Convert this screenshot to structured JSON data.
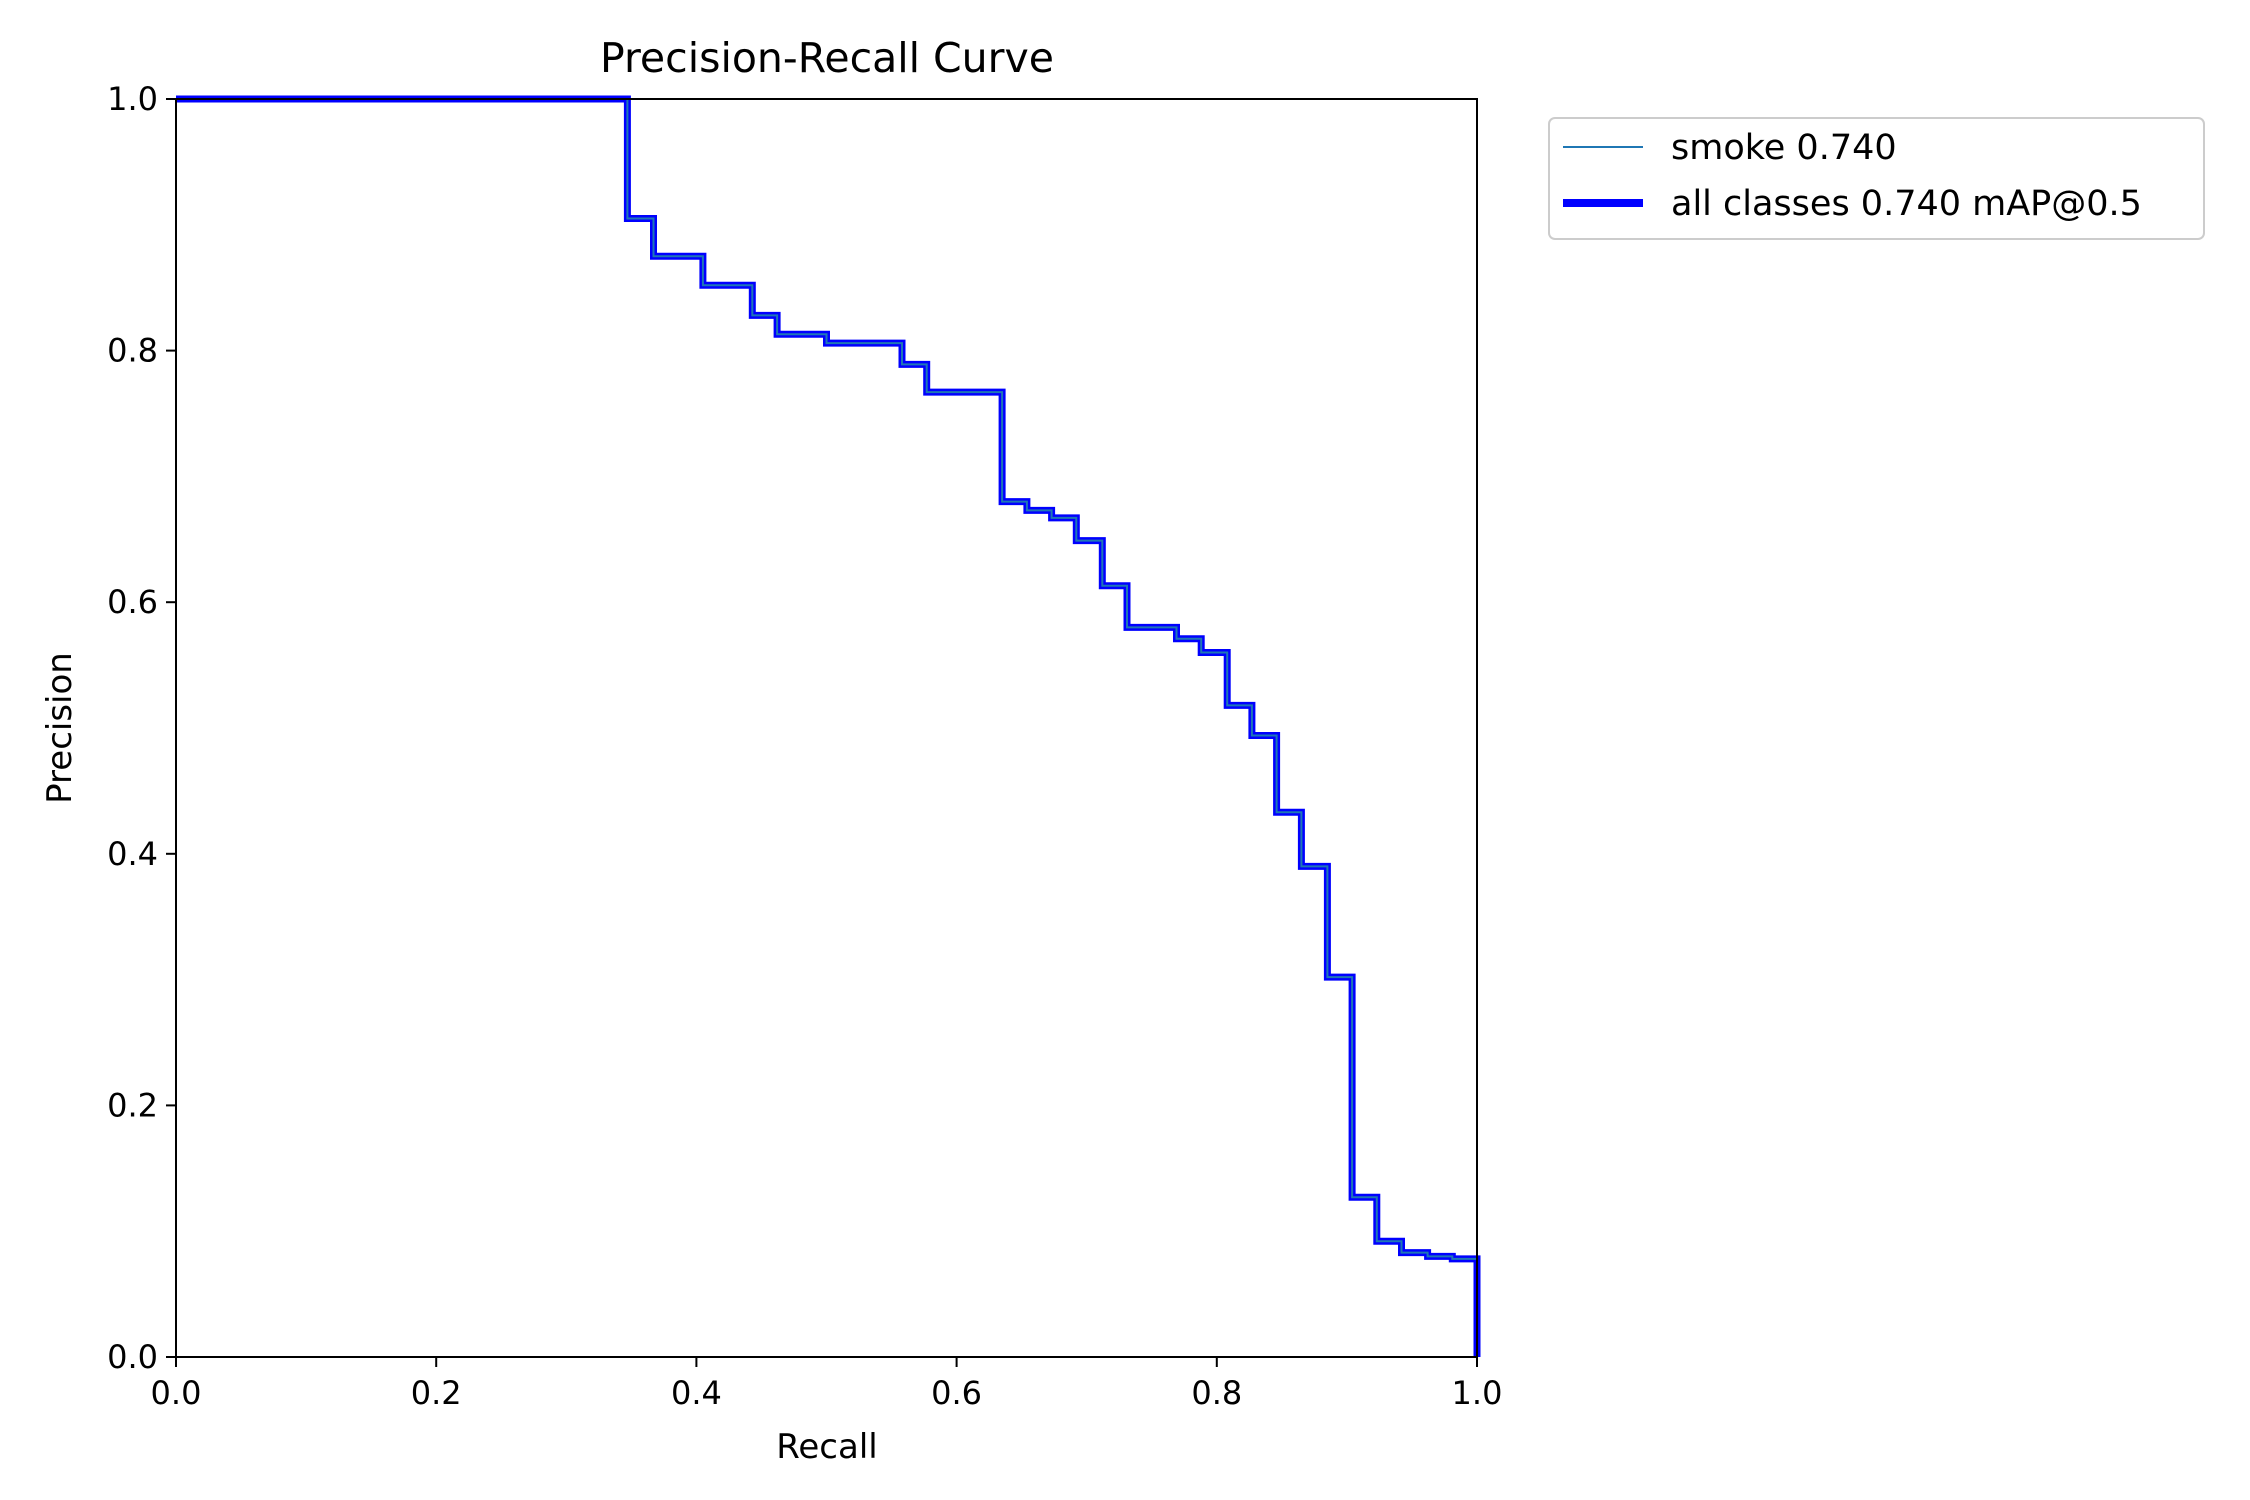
{
  "chart_data": {
    "type": "line",
    "title": "Precision-Recall Curve",
    "xlabel": "Recall",
    "ylabel": "Precision",
    "xlim": [
      0,
      1
    ],
    "ylim": [
      0,
      1
    ],
    "xticks": [
      "0.0",
      "0.2",
      "0.4",
      "0.6",
      "0.8",
      "1.0"
    ],
    "yticks": [
      "0.0",
      "0.2",
      "0.4",
      "0.6",
      "0.8",
      "1.0"
    ],
    "grid": false,
    "legend_position": "outside-upper-right",
    "series": [
      {
        "name": "smoke 0.740",
        "color": "#1f77b4",
        "linewidth": "thin",
        "points": [
          [
            0.0,
            1.0
          ],
          [
            0.347,
            1.0
          ],
          [
            0.347,
            0.905
          ],
          [
            0.367,
            0.905
          ],
          [
            0.367,
            0.875
          ],
          [
            0.405,
            0.875
          ],
          [
            0.405,
            0.852
          ],
          [
            0.443,
            0.852
          ],
          [
            0.443,
            0.828
          ],
          [
            0.462,
            0.828
          ],
          [
            0.462,
            0.813
          ],
          [
            0.5,
            0.813
          ],
          [
            0.5,
            0.806
          ],
          [
            0.558,
            0.806
          ],
          [
            0.558,
            0.789
          ],
          [
            0.577,
            0.789
          ],
          [
            0.577,
            0.767
          ],
          [
            0.635,
            0.767
          ],
          [
            0.635,
            0.68
          ],
          [
            0.654,
            0.68
          ],
          [
            0.654,
            0.673
          ],
          [
            0.673,
            0.673
          ],
          [
            0.673,
            0.667
          ],
          [
            0.692,
            0.667
          ],
          [
            0.692,
            0.649
          ],
          [
            0.712,
            0.649
          ],
          [
            0.712,
            0.613
          ],
          [
            0.731,
            0.613
          ],
          [
            0.731,
            0.58
          ],
          [
            0.769,
            0.58
          ],
          [
            0.769,
            0.571
          ],
          [
            0.788,
            0.571
          ],
          [
            0.788,
            0.56
          ],
          [
            0.808,
            0.56
          ],
          [
            0.808,
            0.518
          ],
          [
            0.827,
            0.518
          ],
          [
            0.827,
            0.494
          ],
          [
            0.846,
            0.494
          ],
          [
            0.846,
            0.433
          ],
          [
            0.865,
            0.433
          ],
          [
            0.865,
            0.39
          ],
          [
            0.885,
            0.39
          ],
          [
            0.885,
            0.302
          ],
          [
            0.904,
            0.302
          ],
          [
            0.904,
            0.127
          ],
          [
            0.923,
            0.127
          ],
          [
            0.923,
            0.092
          ],
          [
            0.942,
            0.092
          ],
          [
            0.942,
            0.083
          ],
          [
            0.962,
            0.083
          ],
          [
            0.962,
            0.08
          ],
          [
            0.981,
            0.08
          ],
          [
            0.981,
            0.078
          ],
          [
            1.0,
            0.078
          ],
          [
            1.0,
            0.0
          ]
        ]
      },
      {
        "name": "all classes 0.740 mAP@0.5",
        "color": "#0000ff",
        "linewidth": "thick",
        "points": [
          [
            0.0,
            1.0
          ],
          [
            0.347,
            1.0
          ],
          [
            0.347,
            0.905
          ],
          [
            0.367,
            0.905
          ],
          [
            0.367,
            0.875
          ],
          [
            0.405,
            0.875
          ],
          [
            0.405,
            0.852
          ],
          [
            0.443,
            0.852
          ],
          [
            0.443,
            0.828
          ],
          [
            0.462,
            0.828
          ],
          [
            0.462,
            0.813
          ],
          [
            0.5,
            0.813
          ],
          [
            0.5,
            0.806
          ],
          [
            0.558,
            0.806
          ],
          [
            0.558,
            0.789
          ],
          [
            0.577,
            0.789
          ],
          [
            0.577,
            0.767
          ],
          [
            0.635,
            0.767
          ],
          [
            0.635,
            0.68
          ],
          [
            0.654,
            0.68
          ],
          [
            0.654,
            0.673
          ],
          [
            0.673,
            0.673
          ],
          [
            0.673,
            0.667
          ],
          [
            0.692,
            0.667
          ],
          [
            0.692,
            0.649
          ],
          [
            0.712,
            0.649
          ],
          [
            0.712,
            0.613
          ],
          [
            0.731,
            0.613
          ],
          [
            0.731,
            0.58
          ],
          [
            0.769,
            0.58
          ],
          [
            0.769,
            0.571
          ],
          [
            0.788,
            0.571
          ],
          [
            0.788,
            0.56
          ],
          [
            0.808,
            0.56
          ],
          [
            0.808,
            0.518
          ],
          [
            0.827,
            0.518
          ],
          [
            0.827,
            0.494
          ],
          [
            0.846,
            0.494
          ],
          [
            0.846,
            0.433
          ],
          [
            0.865,
            0.433
          ],
          [
            0.865,
            0.39
          ],
          [
            0.885,
            0.39
          ],
          [
            0.885,
            0.302
          ],
          [
            0.904,
            0.302
          ],
          [
            0.904,
            0.127
          ],
          [
            0.923,
            0.127
          ],
          [
            0.923,
            0.092
          ],
          [
            0.942,
            0.092
          ],
          [
            0.942,
            0.083
          ],
          [
            0.962,
            0.083
          ],
          [
            0.962,
            0.08
          ],
          [
            0.981,
            0.08
          ],
          [
            0.981,
            0.078
          ],
          [
            1.0,
            0.078
          ],
          [
            1.0,
            0.0
          ]
        ]
      }
    ]
  }
}
